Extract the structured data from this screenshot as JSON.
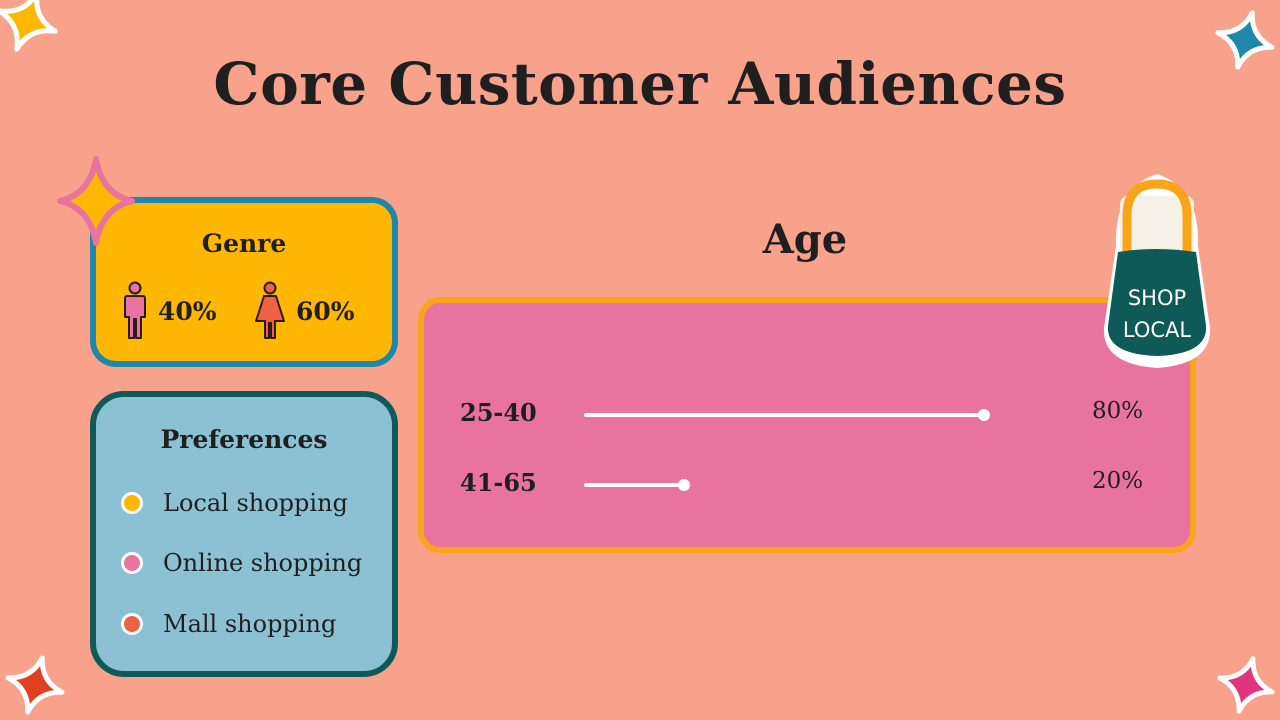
{
  "title": "Core Customer Audiences",
  "genre": {
    "title": "Genre",
    "male_icon": "male-person-icon",
    "male_percent": "40%",
    "female_icon": "female-person-icon",
    "female_percent": "60%"
  },
  "preferences": {
    "title": "Preferences",
    "items": [
      {
        "label": "Local shopping",
        "color": "#ffb703"
      },
      {
        "label": "Online shopping",
        "color": "#e8739f"
      },
      {
        "label": "Mall shopping",
        "color": "#ee6145"
      }
    ]
  },
  "age": {
    "title": "Age",
    "rows": [
      {
        "label": "25-40",
        "percent": "80%",
        "level": 0.8
      },
      {
        "label": "41-65",
        "percent": "20%",
        "level": 0.2
      }
    ]
  },
  "badge": {
    "line1": "SHOP",
    "line2": "LOCAL"
  },
  "colors": {
    "background": "#f8a28c",
    "genre_card": "#ffb703",
    "genre_border": "#1e88ab",
    "pref_card": "#8cc1d4",
    "pref_border": "#0d5a58",
    "age_card": "#e8739f",
    "age_border": "#f9a51a"
  }
}
